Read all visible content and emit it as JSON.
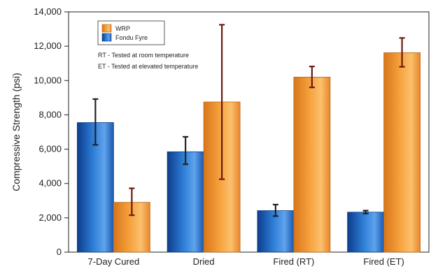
{
  "chart_data": {
    "type": "bar",
    "ylabel": "Compressive Strength (psi)",
    "ylim": [
      0,
      14000
    ],
    "yticks": [
      0,
      2000,
      4000,
      6000,
      8000,
      10000,
      12000,
      14000
    ],
    "ytick_labels": [
      "0",
      "2,000",
      "4,000",
      "6,000",
      "8,000",
      "10,000",
      "12,000",
      "14,000"
    ],
    "categories": [
      "7-Day Cured",
      "Dried",
      "Fired (RT)",
      "Fired (ET)"
    ],
    "series": [
      {
        "name": "Fondu Fyre",
        "color": "#1f5fb4",
        "values": [
          7550,
          5850,
          2420,
          2330
        ],
        "err_low": [
          6250,
          5120,
          2100,
          2250
        ],
        "err_high": [
          8920,
          6720,
          2770,
          2420
        ]
      },
      {
        "name": "WRP",
        "color": "#f39a2c",
        "values": [
          2900,
          8750,
          10200,
          11620
        ],
        "err_low": [
          2150,
          4250,
          9600,
          10800
        ],
        "err_high": [
          3720,
          13250,
          10820,
          12480
        ]
      }
    ],
    "notes": [
      "RT - Tested at room temperature",
      "ET - Tested at elevated temperature"
    ],
    "error_bar_colors": [
      "#222222",
      "#6b1a10"
    ],
    "grid": false,
    "legend_position": "top-left"
  }
}
